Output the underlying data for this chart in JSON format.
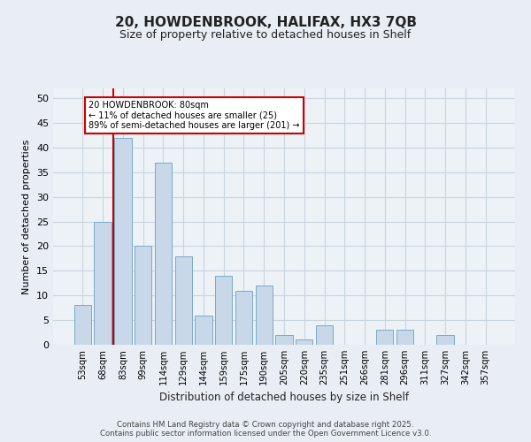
{
  "title1": "20, HOWDENBROOK, HALIFAX, HX3 7QB",
  "title2": "Size of property relative to detached houses in Shelf",
  "xlabel": "Distribution of detached houses by size in Shelf",
  "ylabel": "Number of detached properties",
  "categories": [
    "53sqm",
    "68sqm",
    "83sqm",
    "99sqm",
    "114sqm",
    "129sqm",
    "144sqm",
    "159sqm",
    "175sqm",
    "190sqm",
    "205sqm",
    "220sqm",
    "235sqm",
    "251sqm",
    "266sqm",
    "281sqm",
    "296sqm",
    "311sqm",
    "327sqm",
    "342sqm",
    "357sqm"
  ],
  "values": [
    8,
    25,
    42,
    20,
    37,
    18,
    6,
    14,
    11,
    12,
    2,
    1,
    4,
    0,
    0,
    3,
    3,
    0,
    2,
    0,
    0
  ],
  "bar_color": "#c8d8e8",
  "bar_edge_color": "#7aaaca",
  "vline_x": 1.5,
  "vline_color": "#cc0000",
  "annotation_line1": "20 HOWDENBROOK: 80sqm",
  "annotation_line2": "← 11% of detached houses are smaller (25)",
  "annotation_line3": "89% of semi-detached houses are larger (201) →",
  "box_color": "#ffffff",
  "box_edge_color": "#cc0000",
  "ylim": [
    0,
    52
  ],
  "yticks": [
    0,
    5,
    10,
    15,
    20,
    25,
    30,
    35,
    40,
    45,
    50
  ],
  "footer": "Contains HM Land Registry data © Crown copyright and database right 2025.\nContains public sector information licensed under the Open Government Licence v3.0.",
  "grid_color": "#c8d4de",
  "background_color": "#e8eef4",
  "plot_bg_color": "#edf2f7"
}
